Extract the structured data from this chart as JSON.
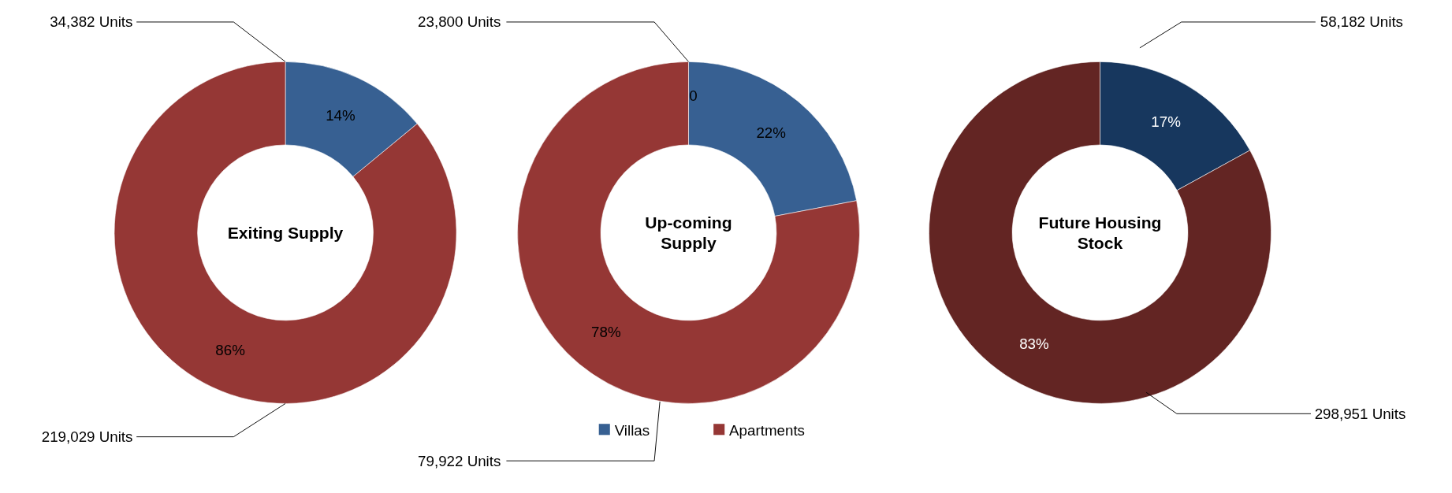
{
  "chart_data": [
    {
      "type": "donut",
      "title": "Exiting Supply",
      "categories": [
        null,
        null
      ],
      "values": [
        14,
        86
      ],
      "value_labels": [
        "14%",
        "86%"
      ],
      "colors": [
        "#376092",
        "#953735"
      ],
      "legend": false,
      "annotations": [
        "34,382 Units",
        "219,029 Units"
      ]
    },
    {
      "type": "donut",
      "title": "Up-coming Supply",
      "categories": [
        "Villas",
        "Apartments"
      ],
      "values": [
        22,
        78
      ],
      "value_labels": [
        "22%",
        "78%"
      ],
      "colors": [
        "#376092",
        "#953735"
      ],
      "legend": "bottom",
      "annotations": [
        "23,800 Units",
        "79,922 Units",
        "0"
      ]
    },
    {
      "type": "donut",
      "title": "Future Housing Stock",
      "categories": [
        null,
        null
      ],
      "values": [
        17,
        83
      ],
      "value_labels": [
        "17%",
        "83%"
      ],
      "colors": [
        "#17375e",
        "#632523"
      ],
      "legend": false,
      "annotations": [
        "58,182 Units",
        "298,951 Units"
      ]
    }
  ]
}
